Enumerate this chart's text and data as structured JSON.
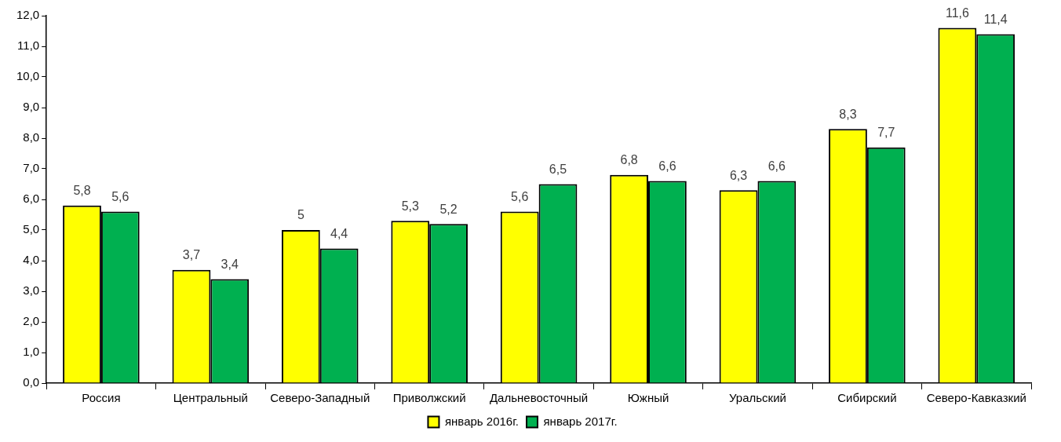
{
  "chart_data": {
    "type": "bar",
    "categories": [
      "Россия",
      "Центральный",
      "Северо-Западный",
      "Приволжский",
      "Дальневосточный",
      "Южный",
      "Уральский",
      "Сибирский",
      "Северо-Кавказкий"
    ],
    "series": [
      {
        "name": "январь 2016г.",
        "color": "#ffff00",
        "values": [
          5.8,
          3.7,
          5,
          5.3,
          5.6,
          6.8,
          6.3,
          8.3,
          11.6
        ],
        "value_labels": [
          "5,8",
          "3,7",
          "5",
          "5,3",
          "5,6",
          "6,8",
          "6,3",
          "8,3",
          "11,6"
        ]
      },
      {
        "name": "январь 2017г.",
        "color": "#00b050",
        "values": [
          5.6,
          3.4,
          4.4,
          5.2,
          6.5,
          6.6,
          6.6,
          7.7,
          11.4
        ],
        "value_labels": [
          "5,6",
          "3,4",
          "4,4",
          "5,2",
          "6,5",
          "6,6",
          "6,6",
          "7,7",
          "11,4"
        ]
      }
    ],
    "ylim": [
      0,
      12
    ],
    "yticks": [
      {
        "value": 0,
        "label": "0,0"
      },
      {
        "value": 1,
        "label": "1,0"
      },
      {
        "value": 2,
        "label": "2,0"
      },
      {
        "value": 3,
        "label": "3,0"
      },
      {
        "value": 4,
        "label": "4,0"
      },
      {
        "value": 5,
        "label": "5,0"
      },
      {
        "value": 6,
        "label": "6,0"
      },
      {
        "value": 7,
        "label": "7,0"
      },
      {
        "value": 8,
        "label": "8,0"
      },
      {
        "value": 9,
        "label": "9,0"
      },
      {
        "value": 10,
        "label": "10,0"
      },
      {
        "value": 11,
        "label": "11,0"
      },
      {
        "value": 12,
        "label": "12,0"
      }
    ],
    "legend": "bottom"
  }
}
